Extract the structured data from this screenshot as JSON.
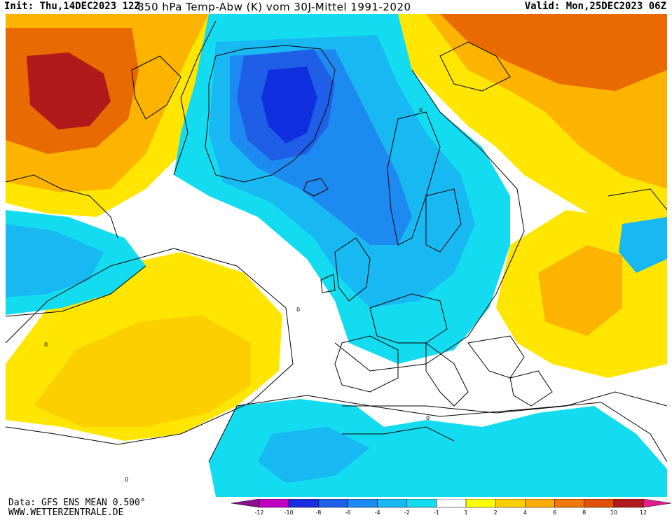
{
  "header": {
    "init": "Init: Thu,14DEC2023 12Z",
    "description": "850 hPa Temp-Abw (K) vom 30J-Mittel 1991-2020",
    "valid": "Valid: Mon,25DEC2023 06Z"
  },
  "footer": {
    "data_source": "Data: GFS ENS MEAN 0.500°",
    "website": "WWW.WETTERZENTRALE.DE"
  },
  "legend": {
    "ticks": [
      "-12",
      "-10",
      "-8",
      "-6",
      "-4",
      "-2",
      "-1",
      "1",
      "2",
      "4",
      "6",
      "8",
      "10",
      "12"
    ],
    "colors": [
      "#8b0f8b",
      "#c000c0",
      "#1a2ee0",
      "#1f5fe8",
      "#1c8af0",
      "#18b8f2",
      "#14dcf0",
      "#ffffff",
      "#ffff00",
      "#fcd000",
      "#fcac00",
      "#f07800",
      "#e25000",
      "#b01a1a",
      "#e0208a"
    ]
  },
  "map_labels": {
    "contour_zero": "0"
  },
  "colors": {
    "cold_deep": "#1030e0",
    "cold_mid": "#1f6ff0",
    "cold_light": "#14c8f4",
    "neutral": "#ffffff",
    "warm_light": "#ffe600",
    "warm_mid": "#fcb400",
    "warm_strong": "#e86a00",
    "warm_extreme": "#b01a1a"
  }
}
